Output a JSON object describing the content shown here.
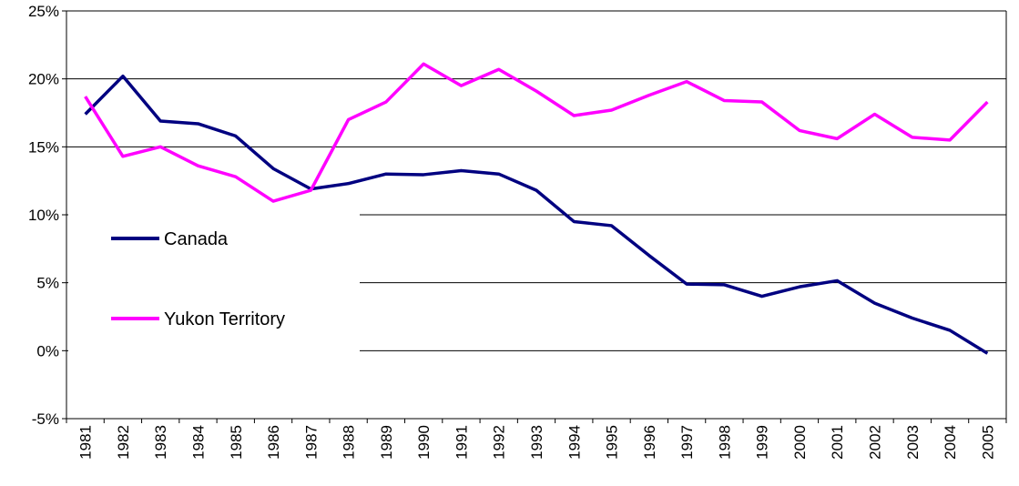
{
  "chart_data": {
    "type": "line",
    "categories": [
      "1981",
      "1982",
      "1983",
      "1984",
      "1985",
      "1986",
      "1987",
      "1988",
      "1989",
      "1990",
      "1991",
      "1992",
      "1993",
      "1994",
      "1995",
      "1996",
      "1997",
      "1998",
      "1999",
      "2000",
      "2001",
      "2002",
      "2003",
      "2004",
      "2005"
    ],
    "series": [
      {
        "name": "Canada",
        "color": "#000080",
        "values": [
          17.4,
          20.2,
          16.9,
          16.7,
          15.8,
          13.4,
          11.9,
          12.3,
          13.0,
          12.95,
          13.25,
          13.0,
          11.8,
          9.5,
          9.2,
          7.0,
          4.9,
          4.85,
          4.0,
          4.7,
          5.15,
          3.5,
          2.4,
          1.5,
          -0.2
        ]
      },
      {
        "name": "Yukon Territory",
        "color": "#ff00ff",
        "values": [
          18.7,
          14.3,
          15.0,
          13.6,
          12.8,
          11.0,
          11.8,
          17.0,
          18.3,
          21.1,
          19.5,
          20.7,
          19.1,
          17.3,
          17.7,
          18.8,
          19.8,
          18.4,
          18.3,
          16.2,
          15.6,
          17.4,
          15.7,
          15.5,
          18.3
        ]
      }
    ],
    "ylim": [
      -5,
      25
    ],
    "yticks": [
      {
        "value": -5,
        "label": "-5%"
      },
      {
        "value": 0,
        "label": "0%"
      },
      {
        "value": 5,
        "label": "5%"
      },
      {
        "value": 10,
        "label": "10%"
      },
      {
        "value": 15,
        "label": "15%"
      },
      {
        "value": 20,
        "label": "20%"
      },
      {
        "value": 25,
        "label": "25%"
      }
    ],
    "grid": true,
    "legend": "left"
  }
}
